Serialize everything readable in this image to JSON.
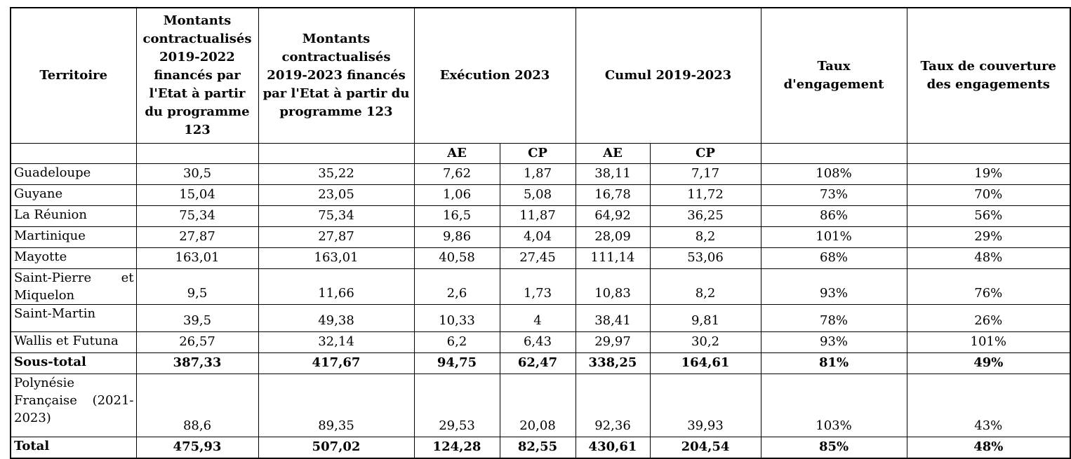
{
  "colors": {
    "text": "#000000",
    "border": "#000000",
    "background": "#ffffff"
  },
  "table": {
    "headers": {
      "territory": "Territoire",
      "montants_2019_2022": "Montants contractualisés 2019-2022 financés par l'Etat à partir du programme 123",
      "montants_2019_2023": "Montants contractualisés 2019-2023 financés par l'Etat à partir du programme 123",
      "execution_2023": "Exécution 2023",
      "cumul_2019_2023": "Cumul 2019-2023",
      "taux_engagement": "Taux d'engagement",
      "taux_couverture": "Taux de couverture des engagements",
      "ae": "AE",
      "cp": "CP"
    },
    "rows": [
      {
        "territory": "Guadeloupe",
        "bold": false,
        "values": [
          "30,5",
          "35,22",
          "7,62",
          "1,87",
          "38,11",
          "7,17",
          "108%",
          "19%"
        ]
      },
      {
        "territory": "Guyane",
        "bold": false,
        "values": [
          "15,04",
          "23,05",
          "1,06",
          "5,08",
          "16,78",
          "11,72",
          "73%",
          "70%"
        ]
      },
      {
        "territory": "La Réunion",
        "bold": false,
        "values": [
          "75,34",
          "75,34",
          "16,5",
          "11,87",
          "64,92",
          "36,25",
          "86%",
          "56%"
        ]
      },
      {
        "territory": "Martinique",
        "bold": false,
        "values": [
          "27,87",
          "27,87",
          "9,86",
          "4,04",
          "28,09",
          "8,2",
          "101%",
          "29%"
        ]
      },
      {
        "territory": "Mayotte",
        "bold": false,
        "values": [
          "163,01",
          "163,01",
          "40,58",
          "27,45",
          "111,14",
          "53,06",
          "68%",
          "48%"
        ]
      },
      {
        "territory": "Saint-Pierre et Miquelon",
        "bold": false,
        "values": [
          "9,5",
          "11,66",
          "2,6",
          "1,73",
          "10,83",
          "8,2",
          "93%",
          "76%"
        ]
      },
      {
        "territory": "Saint-Martin",
        "bold": false,
        "values": [
          "39,5",
          "49,38",
          "10,33",
          "4",
          "38,41",
          "9,81",
          "78%",
          "26%"
        ]
      },
      {
        "territory": "Wallis et Futuna",
        "bold": false,
        "values": [
          "26,57",
          "32,14",
          "6,2",
          "6,43",
          "29,97",
          "30,2",
          "93%",
          "101%"
        ]
      },
      {
        "territory": "Sous-total",
        "bold": true,
        "values": [
          "387,33",
          "417,67",
          "94,75",
          "62,47",
          "338,25",
          "164,61",
          "81%",
          "49%"
        ]
      },
      {
        "territory": "Polynésie Française (2021-2023)",
        "bold": false,
        "values": [
          "88,6",
          "89,35",
          "29,53",
          "20,08",
          "92,36",
          "39,93",
          "103%",
          "43%"
        ]
      },
      {
        "territory": "Total",
        "bold": true,
        "values": [
          "475,93",
          "507,02",
          "124,28",
          "82,55",
          "430,61",
          "204,54",
          "85%",
          "48%"
        ]
      }
    ]
  }
}
